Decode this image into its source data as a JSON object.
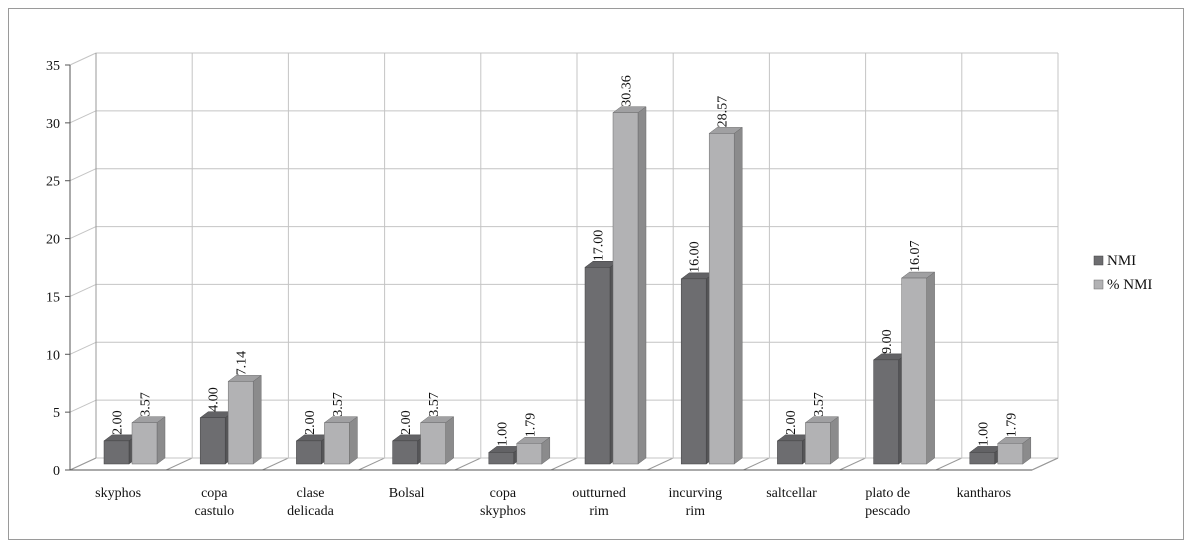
{
  "chart_data": {
    "type": "bar",
    "style": "3d-clustered-column",
    "categories": [
      [
        "skyphos"
      ],
      [
        "copa",
        "castulo"
      ],
      [
        "clase",
        "delicada"
      ],
      [
        "Bolsal"
      ],
      [
        "copa",
        "skyphos"
      ],
      [
        "outturned",
        "rim"
      ],
      [
        "incurving",
        "rim"
      ],
      [
        "saltcellar"
      ],
      [
        "plato de",
        "pescado"
      ],
      [
        "kantharos"
      ]
    ],
    "series": [
      {
        "name": "NMI",
        "color": "#6d6d70",
        "values": [
          2,
          4,
          2,
          2,
          1,
          17,
          16,
          2,
          9,
          1
        ],
        "labels": [
          "2.00",
          "4.00",
          "2.00",
          "2.00",
          "1.00",
          "17.00",
          "16.00",
          "2.00",
          "9.00",
          "1.00"
        ]
      },
      {
        "name": "% NMI",
        "color": "#b2b2b4",
        "values": [
          3.57,
          7.14,
          3.57,
          3.57,
          1.79,
          30.36,
          28.57,
          3.57,
          16.07,
          1.79
        ],
        "labels": [
          "3.57",
          "7.14",
          "3.57",
          "3.57",
          "1.79",
          "30.36",
          "28.57",
          "3.57",
          "16.07",
          "1.79"
        ]
      }
    ],
    "yticks": [
      "0",
      "5",
      "10",
      "15",
      "20",
      "25",
      "30",
      "35"
    ],
    "ylim": [
      0,
      35
    ],
    "grid": true,
    "legend": "right"
  }
}
